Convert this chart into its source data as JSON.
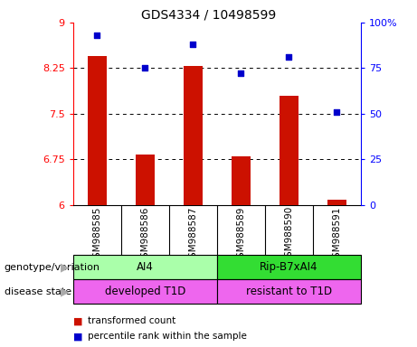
{
  "title": "GDS4334 / 10498599",
  "samples": [
    "GSM988585",
    "GSM988586",
    "GSM988587",
    "GSM988589",
    "GSM988590",
    "GSM988591"
  ],
  "bar_values": [
    8.45,
    6.82,
    8.28,
    6.79,
    7.8,
    6.08
  ],
  "scatter_values": [
    93,
    75,
    88,
    72,
    81,
    51
  ],
  "ylim_left": [
    6,
    9
  ],
  "ylim_right": [
    0,
    100
  ],
  "yticks_left": [
    6,
    6.75,
    7.5,
    8.25,
    9
  ],
  "yticks_right": [
    0,
    25,
    50,
    75,
    100
  ],
  "bar_color": "#cc1100",
  "scatter_color": "#0000cc",
  "background_color": "#ffffff",
  "plot_bg_color": "#ffffff",
  "sample_bg_color": "#c8c8c8",
  "genotype_labels": [
    "AI4",
    "Rip-B7xAI4"
  ],
  "genotype_colors": [
    "#aaffaa",
    "#33dd33"
  ],
  "disease_labels": [
    "developed T1D",
    "resistant to T1D"
  ],
  "disease_color": "#ee66ee",
  "legend_red_label": "transformed count",
  "legend_blue_label": "percentile rank within the sample",
  "left_label": "genotype/variation",
  "right_label": "disease state",
  "arrow_color": "#aaaaaa"
}
